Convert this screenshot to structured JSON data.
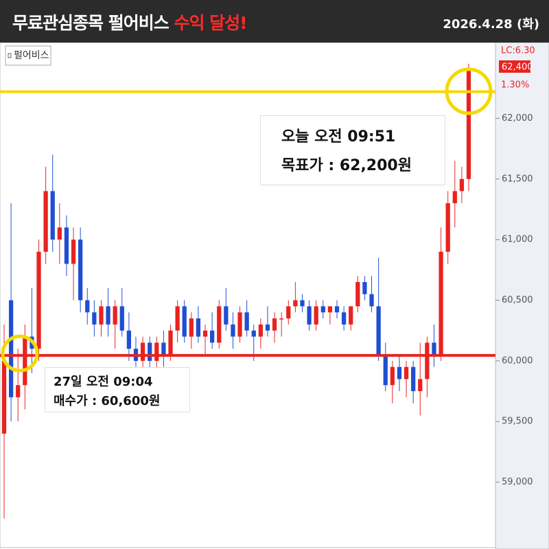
{
  "header": {
    "title": "무료관심종목 펄어비스",
    "highlight": "수익 달성!",
    "date": "2026.4.28 (화)"
  },
  "chart_data": {
    "type": "candlestick",
    "legend": "펄어비스",
    "open": [
      59400,
      60500,
      59700,
      59800,
      60200,
      60100,
      60900,
      61400,
      61000,
      61100,
      60800,
      61000,
      60500,
      60400,
      60300,
      60450,
      60300,
      60450,
      60250,
      60100,
      60000,
      60150,
      60000,
      60150,
      60050,
      60250,
      60450,
      60200,
      60350,
      60200,
      60250,
      60150,
      60450,
      60300,
      60200,
      60400,
      60250,
      60200,
      60300,
      60250,
      60350,
      60350,
      60450,
      60500,
      60450,
      60300,
      60450,
      60400,
      60450,
      60400,
      60300,
      60450,
      60650,
      60550,
      60450,
      60050,
      59800,
      59950,
      59850,
      59950,
      59750,
      59850,
      60150,
      60050,
      60900,
      61300,
      61400,
      61500
    ],
    "high": [
      60300,
      61300,
      60100,
      60300,
      60600,
      61000,
      61600,
      61700,
      61300,
      61200,
      61100,
      61100,
      60600,
      60500,
      60500,
      60600,
      60500,
      60600,
      60400,
      60200,
      60200,
      60200,
      60200,
      60250,
      60300,
      60500,
      60500,
      60400,
      60450,
      60300,
      60400,
      60500,
      60600,
      60400,
      60450,
      60500,
      60300,
      60350,
      60450,
      60400,
      60400,
      60500,
      60650,
      60550,
      60500,
      60500,
      60500,
      60450,
      60500,
      60450,
      60450,
      60700,
      60700,
      60700,
      60850,
      60150,
      60000,
      60050,
      60000,
      60000,
      60150,
      60200,
      60300,
      61100,
      61400,
      61650,
      61600,
      62450
    ],
    "low": [
      58700,
      59500,
      59500,
      59600,
      59900,
      60000,
      60800,
      60900,
      60800,
      60700,
      60500,
      60400,
      60300,
      60200,
      60200,
      60200,
      60100,
      60200,
      60000,
      59950,
      59950,
      59950,
      59900,
      59950,
      60000,
      60150,
      60150,
      60100,
      60150,
      60050,
      60100,
      60100,
      60250,
      60100,
      60150,
      60200,
      60000,
      60100,
      60200,
      60150,
      60200,
      60300,
      60400,
      60400,
      60250,
      60250,
      60350,
      60300,
      60350,
      60250,
      60250,
      60400,
      60500,
      60400,
      60000,
      59750,
      59650,
      59750,
      59700,
      59650,
      59550,
      59700,
      59950,
      60000,
      60800,
      61100,
      61300,
      61400
    ],
    "close": [
      60000,
      59700,
      59800,
      60200,
      60100,
      60900,
      61400,
      61000,
      61100,
      60800,
      61000,
      60500,
      60400,
      60300,
      60450,
      60300,
      60450,
      60250,
      60100,
      60000,
      60150,
      60000,
      60150,
      60050,
      60250,
      60450,
      60200,
      60350,
      60200,
      60250,
      60150,
      60450,
      60300,
      60200,
      60400,
      60250,
      60200,
      60300,
      60250,
      60350,
      60350,
      60450,
      60500,
      60450,
      60300,
      60450,
      60400,
      60450,
      60400,
      60300,
      60450,
      60650,
      60550,
      60450,
      60050,
      59800,
      59950,
      59850,
      59950,
      59750,
      59850,
      60150,
      60050,
      60900,
      61300,
      61400,
      61500,
      62400
    ],
    "up_color": "#e8231f",
    "down_color": "#1f4fd1",
    "ylim": [
      58460,
      62625
    ],
    "yticks": [
      {
        "value": 59000,
        "label": "59,000"
      },
      {
        "value": 59500,
        "label": "59,500"
      },
      {
        "value": 60000,
        "label": "60,000"
      },
      {
        "value": 60500,
        "label": "60,500"
      },
      {
        "value": 61000,
        "label": "61,000"
      },
      {
        "value": 61500,
        "label": "61,500"
      },
      {
        "value": 62000,
        "label": "62,000"
      }
    ],
    "reference_lines": [
      {
        "value": 62220,
        "color": "#f5d800"
      },
      {
        "value": 60045,
        "color": "#e8231f"
      }
    ],
    "axis_top_labels": [
      "LC:6.30",
      "62,400",
      "1.30%"
    ],
    "annotations": [
      {
        "lines": [
          "오늘 오전 09:51",
          "목표가 : 62,200원"
        ]
      },
      {
        "lines": [
          "27일 오전 09:04",
          "매수가 : 60,600원"
        ]
      }
    ]
  }
}
